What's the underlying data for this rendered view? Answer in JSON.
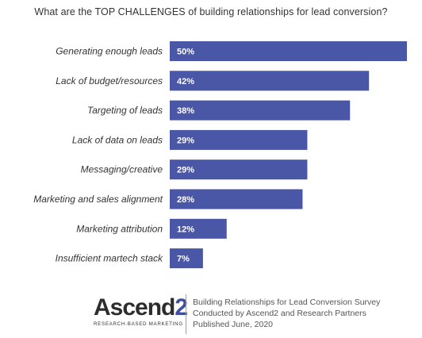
{
  "chart_data": {
    "type": "bar",
    "orientation": "horizontal",
    "title": "What are the TOP CHALLENGES of building relationships for lead conversion?",
    "categories": [
      "Generating enough leads",
      "Lack of budget/resources",
      "Targeting of leads",
      "Lack of data on leads",
      "Messaging/creative",
      "Marketing and sales alignment",
      "Marketing attribution",
      "Insufficient martech stack"
    ],
    "values": [
      50,
      42,
      38,
      29,
      29,
      28,
      12,
      7
    ],
    "value_labels": [
      "50%",
      "42%",
      "38%",
      "29%",
      "29%",
      "28%",
      "12%",
      "7%"
    ],
    "unit": "%",
    "xlim": [
      0,
      50
    ],
    "grid": false,
    "legend": "none",
    "bar_color": "#4a56a6"
  },
  "footer": {
    "logo_text": "Ascend",
    "logo_accent": "2",
    "logo_tagline": "RESEARCH-BASED MARKETING",
    "source_lines": [
      "Building Relationships for Lead Conversion Survey",
      "Conducted by Ascend2 and Research Partners",
      "Published June, 2020"
    ]
  },
  "colors": {
    "bar": "#4a56a6",
    "logo_accent": "#3f4fa1",
    "text": "#333333"
  }
}
